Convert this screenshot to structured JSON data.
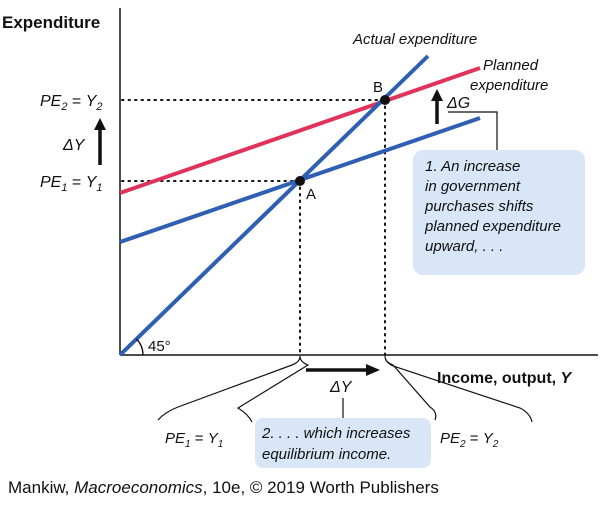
{
  "axes": {
    "y_title": "Expenditure",
    "x_title": "Income, output, ",
    "x_title_var": "Y"
  },
  "lines": {
    "actual": "Actual expenditure",
    "planned_line1": "Planned",
    "planned_line2": "expenditure"
  },
  "colors": {
    "actual": "#2f5fb3",
    "planned_new": "#e0325a",
    "planned_old": "#2f5fb3",
    "callout_fill": "#d9e6f7",
    "axis": "#111111"
  },
  "points": {
    "a": "A",
    "b": "B"
  },
  "angle_label": "45°",
  "y_axis_labels": {
    "pe2_pe": "PE",
    "pe2_sub": "2",
    "pe2_eq": " = ",
    "pe2_y": "Y",
    "pe2_ysub": "2",
    "pe1_pe": "PE",
    "pe1_sub": "1",
    "pe1_eq": " = ",
    "pe1_y": "Y",
    "pe1_ysub": "1",
    "delta_y": "ΔY"
  },
  "delta_g": "ΔG",
  "delta_y_bottom": "ΔY",
  "callouts": {
    "one": [
      "1. An increase",
      "in government",
      "purchases shifts",
      "planned expenditure",
      "upward, . . ."
    ],
    "two": [
      "2. . . . which increases",
      "equilibrium income."
    ]
  },
  "brace_labels": {
    "left_pe": "PE",
    "left_sub": "1",
    "left_eq": " = ",
    "left_y": "Y",
    "left_ysub": "1",
    "right_pe": "PE",
    "right_sub": "2",
    "right_eq": " = ",
    "right_y": "Y",
    "right_ysub": "2"
  },
  "credit": {
    "author": "Mankiw, ",
    "book": "Macroeconomics",
    "rest": ", 10e, © 2019 Worth Publishers"
  }
}
